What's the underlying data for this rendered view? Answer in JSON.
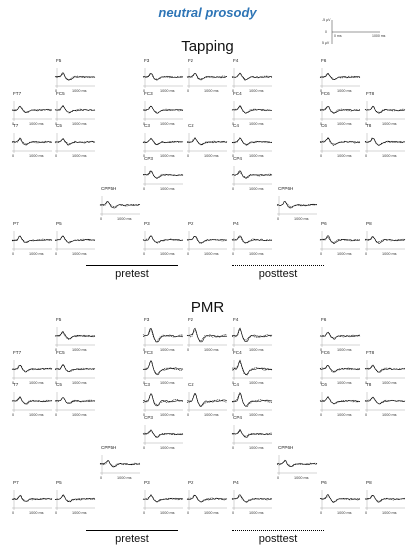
{
  "title": "neutral prosody",
  "sections": [
    {
      "name": "Tapping",
      "labels": {
        "pretest": "pretest",
        "posttest": "posttest"
      },
      "channels": [
        "F5",
        "F3",
        "Fz",
        "F4",
        "F6",
        "FT7",
        "FC5",
        "FC3",
        "FC4",
        "FC6",
        "FT8",
        "T7",
        "C5",
        "C3",
        "Cz",
        "C4",
        "C6",
        "T8",
        "CP3",
        "CP4",
        "CPP5H",
        "CPP6H",
        "P7",
        "P5",
        "P3",
        "Pz",
        "P4",
        "P6",
        "P8"
      ]
    },
    {
      "name": "PMR",
      "labels": {
        "pretest": "pretest",
        "posttest": "posttest"
      },
      "channels": [
        "F5",
        "F3",
        "Fz",
        "F4",
        "F6",
        "FT7",
        "FC5",
        "FC3",
        "FC4",
        "FC6",
        "FT8",
        "T7",
        "C5",
        "C3",
        "Cz",
        "C4",
        "C6",
        "T8",
        "CP3",
        "CP4",
        "CPP5H",
        "CPP6H",
        "P7",
        "P5",
        "P3",
        "Pz",
        "P4",
        "P6",
        "P8"
      ]
    }
  ],
  "axis_ticks": {
    "t0": "0",
    "t1": "1000 ms"
  },
  "scale_bar": {
    "top": "-5 µV",
    "mid": "0",
    "bottom": "5 µV",
    "time": "1000 ms",
    "zero": "0 ms"
  }
}
